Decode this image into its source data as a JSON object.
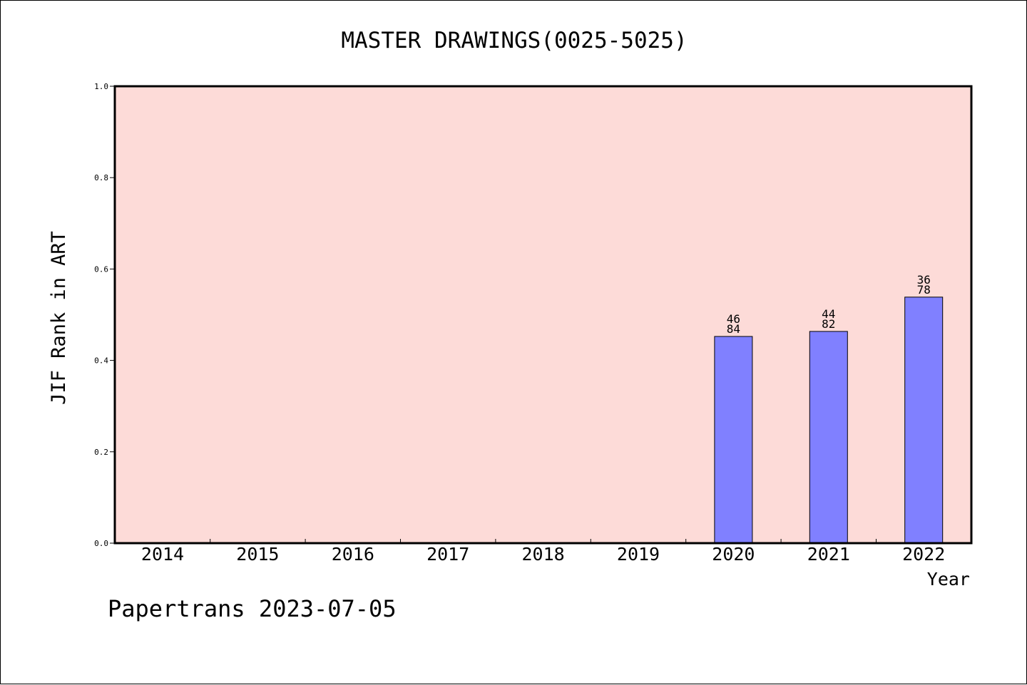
{
  "chart_data": {
    "type": "bar",
    "title": "MASTER DRAWINGS(0025-5025)",
    "xlabel": "Year",
    "ylabel": "JIF Rank in ART",
    "categories": [
      "2014",
      "2015",
      "2016",
      "2017",
      "2018",
      "2019",
      "2020",
      "2021",
      "2022"
    ],
    "values": [
      null,
      null,
      null,
      null,
      null,
      null,
      0.4524,
      0.4634,
      0.5385
    ],
    "bar_labels": [
      null,
      null,
      null,
      null,
      null,
      null,
      {
        "top": "46",
        "bottom": "84"
      },
      {
        "top": "44",
        "bottom": "82"
      },
      {
        "top": "36",
        "bottom": "78"
      }
    ],
    "ylim": [
      0.0,
      1.0
    ],
    "yticks": [
      "0.0",
      "0.2",
      "0.4",
      "0.6",
      "0.8",
      "1.0"
    ],
    "grid": false,
    "legend": "none",
    "colors": {
      "plot_background": "#fddbd8",
      "bar_fill": "#8080ff",
      "bar_edge": "#000000",
      "axes": "#000000"
    }
  },
  "footer": {
    "watermark": "Papertrans 2023-07-05"
  }
}
